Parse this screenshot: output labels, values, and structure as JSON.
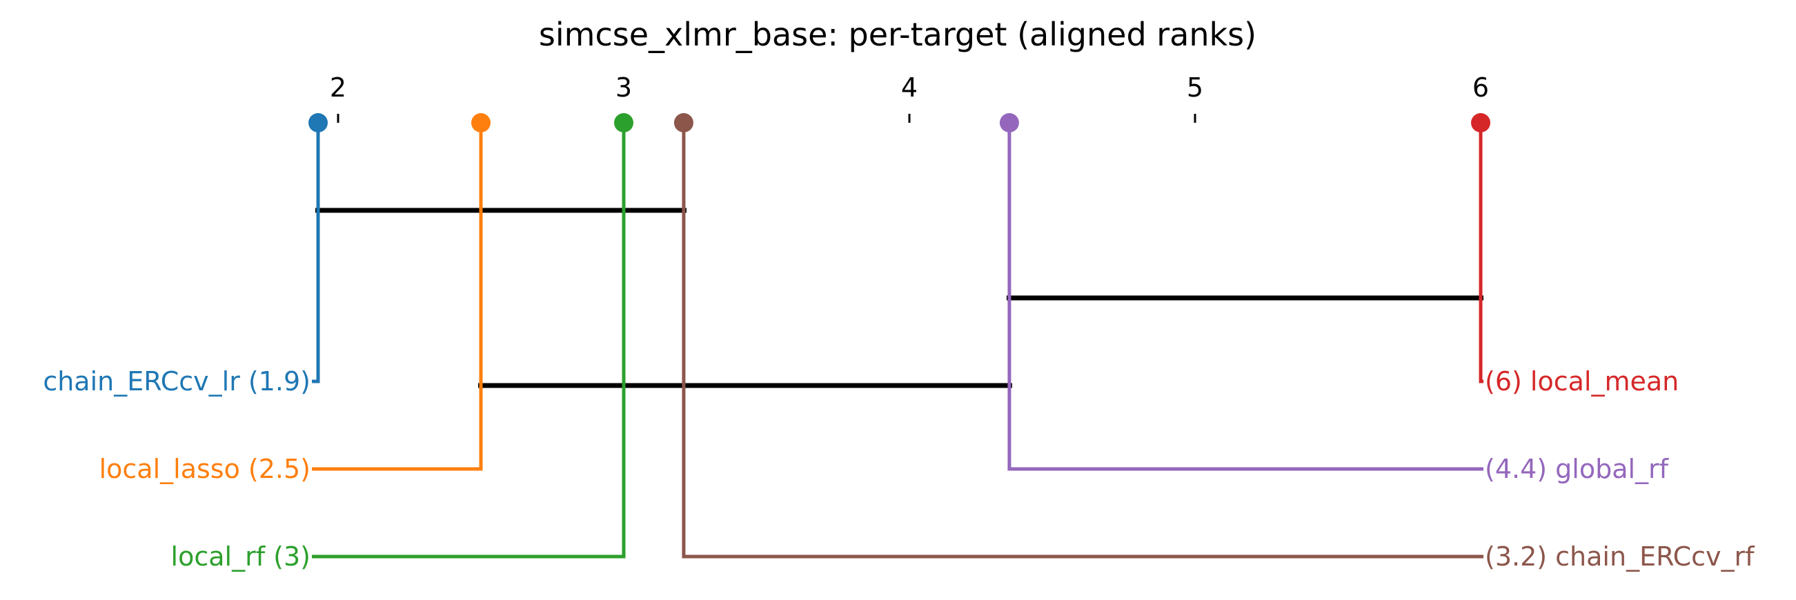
{
  "chart_data": {
    "type": "critical-difference",
    "title": "simcse_xlmr_base: per-target (aligned ranks)",
    "axis": {
      "range": [
        1.93,
        6
      ],
      "ticks": [
        2,
        3,
        4,
        5,
        6
      ],
      "tick_labels": [
        "2",
        "3",
        "4",
        "5",
        "6"
      ]
    },
    "methods": [
      {
        "name": "chain_ERCcv_lr",
        "rank": 1.93,
        "label": "chain_ERCcv_lr (1.9)",
        "color": "#1f77b4",
        "side": "left"
      },
      {
        "name": "local_lasso",
        "rank": 2.5,
        "label": "local_lasso (2.5)",
        "color": "#ff7f0e",
        "side": "left"
      },
      {
        "name": "local_rf",
        "rank": 3.0,
        "label": "local_rf (3)",
        "color": "#2ca02c",
        "side": "left"
      },
      {
        "name": "chain_ERCcv_rf",
        "rank": 3.21,
        "label": "(3.2) chain_ERCcv_rf",
        "color": "#8c564b",
        "side": "right"
      },
      {
        "name": "global_rf",
        "rank": 4.35,
        "label": "(4.4) global_rf",
        "color": "#9467bd",
        "side": "right"
      },
      {
        "name": "local_mean",
        "rank": 6.0,
        "label": "(6) local_mean",
        "color": "#d62728",
        "side": "right"
      }
    ],
    "cliques": [
      {
        "from": 1.93,
        "to": 3.21
      },
      {
        "from": 4.35,
        "to": 6.0
      },
      {
        "from": 2.5,
        "to": 4.35
      }
    ],
    "bar_color": "#000000"
  }
}
